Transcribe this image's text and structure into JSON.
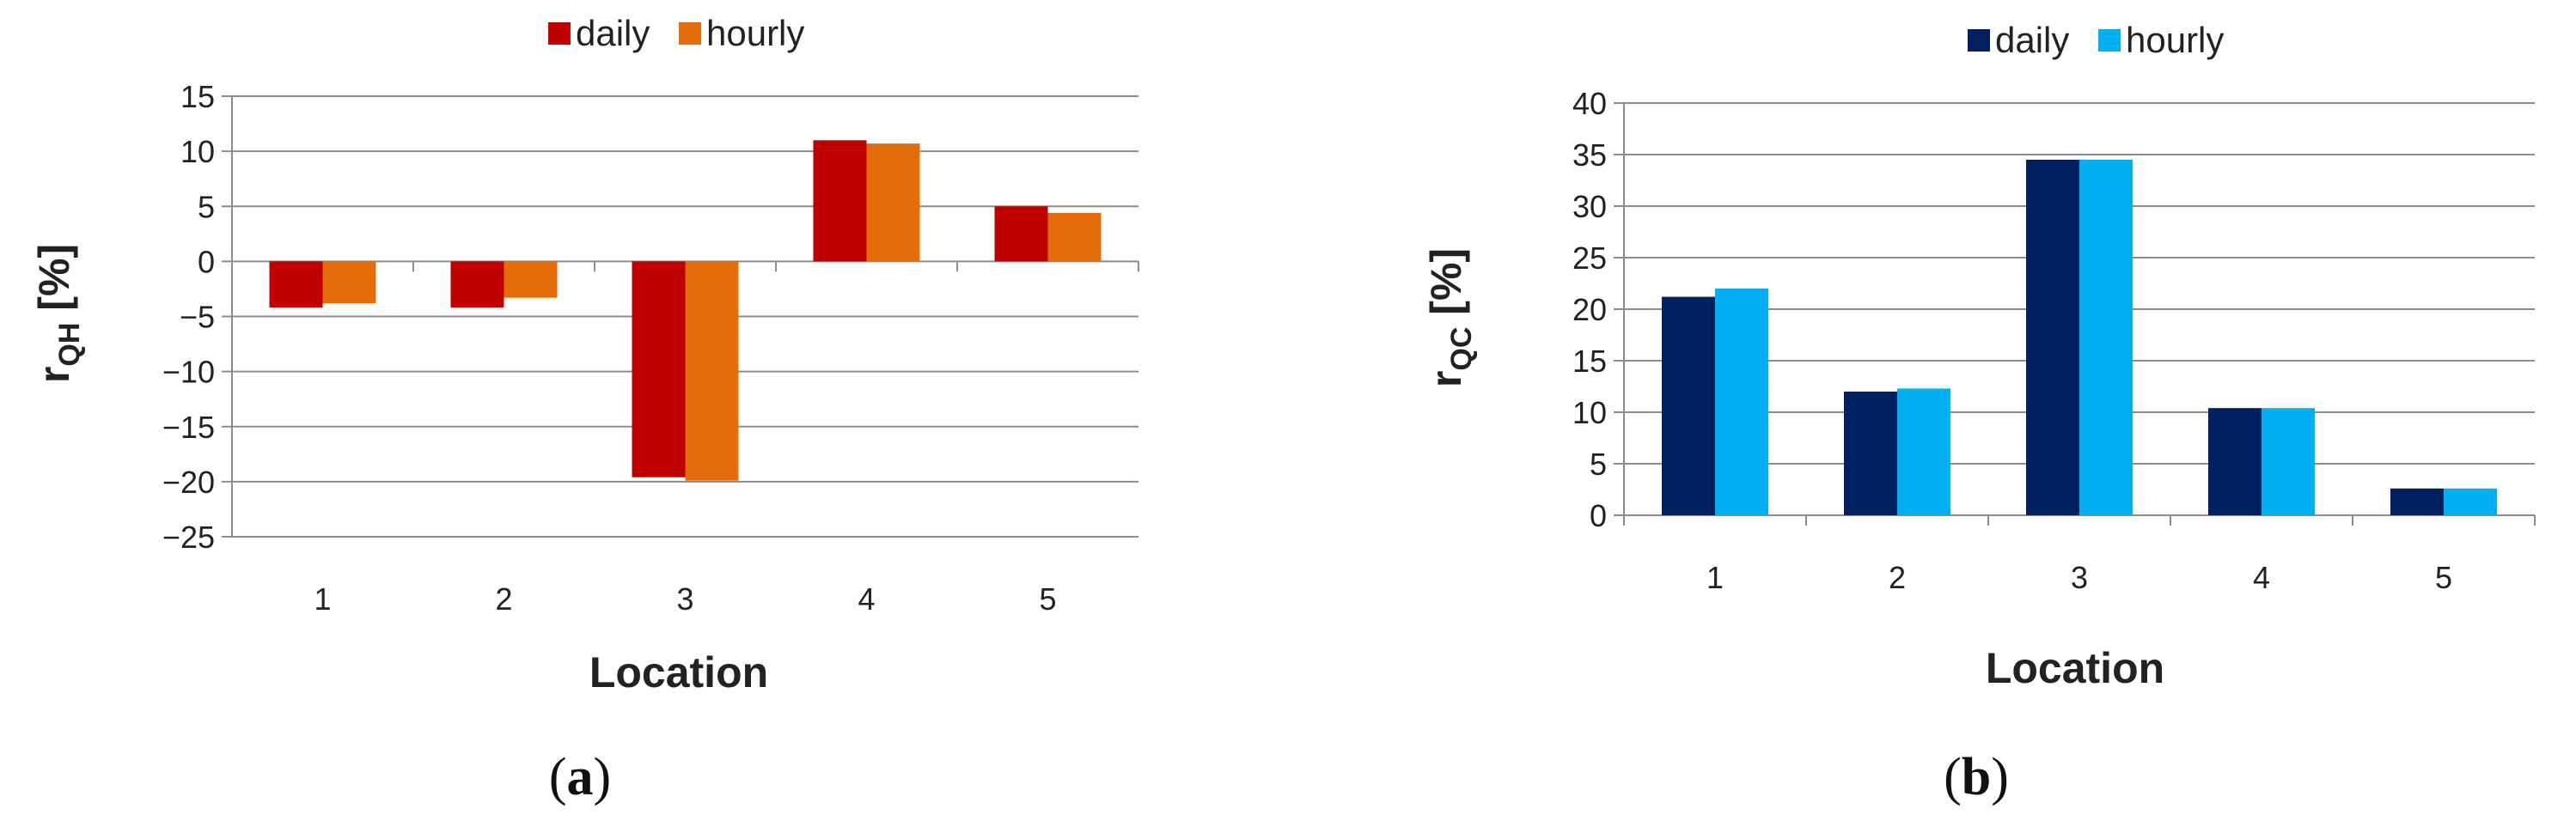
{
  "chart_data": [
    {
      "type": "bar",
      "panel_label": "a",
      "categories": [
        "1",
        "2",
        "3",
        "4",
        "5"
      ],
      "xlabel": "Location",
      "ylabel": {
        "main": "r",
        "sub": "QH",
        "suffix": " [%]"
      },
      "ylim": [
        -25,
        15
      ],
      "yticks": [
        15,
        10,
        5,
        0,
        -5,
        -10,
        -15,
        -20,
        -25
      ],
      "grid": true,
      "legend_position": "top",
      "series": [
        {
          "name": "daily",
          "color": "#C00000",
          "values": [
            -4.2,
            -4.2,
            -19.6,
            11.0,
            5.0
          ]
        },
        {
          "name": "hourly",
          "color": "#E46C0A",
          "values": [
            -3.8,
            -3.3,
            -19.9,
            10.7,
            4.4
          ]
        }
      ]
    },
    {
      "type": "bar",
      "panel_label": "b",
      "categories": [
        "1",
        "2",
        "3",
        "4",
        "5"
      ],
      "xlabel": "Location",
      "ylabel": {
        "main": "r",
        "sub": "QC",
        "suffix": " [%]"
      },
      "ylim": [
        0,
        40
      ],
      "yticks": [
        40,
        35,
        30,
        25,
        20,
        15,
        10,
        5,
        0
      ],
      "grid": true,
      "legend_position": "top",
      "series": [
        {
          "name": "daily",
          "color": "#002060",
          "values": [
            21.2,
            12.0,
            34.5,
            10.4,
            2.6
          ]
        },
        {
          "name": "hourly",
          "color": "#00B0F0",
          "values": [
            22.0,
            12.3,
            34.5,
            10.4,
            2.6
          ]
        }
      ]
    }
  ],
  "captions": [
    "a",
    "b"
  ]
}
